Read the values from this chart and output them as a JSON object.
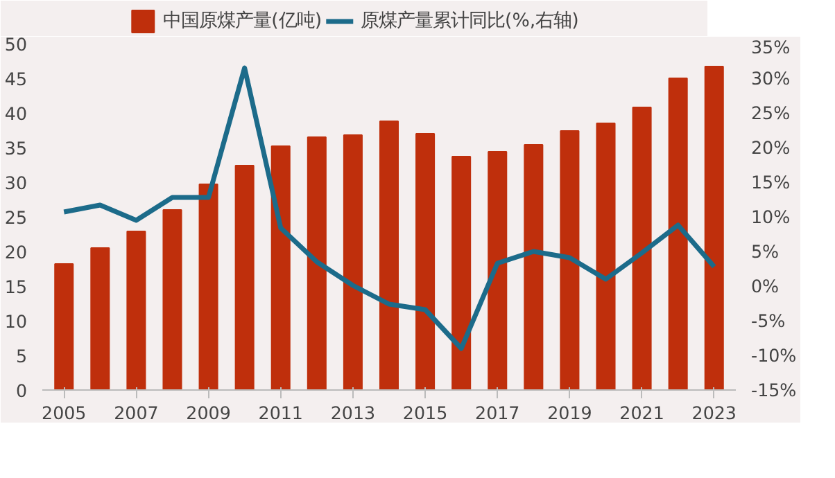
{
  "chart_data": {
    "type": "bar",
    "x": [
      2005,
      2006,
      2007,
      2008,
      2009,
      2010,
      2011,
      2012,
      2013,
      2014,
      2015,
      2016,
      2017,
      2018,
      2019,
      2020,
      2021,
      2022,
      2023
    ],
    "series": [
      {
        "name": "中国原煤产量(亿吨)",
        "color": "#bf2f0c",
        "values": [
          18.2,
          20.5,
          22.9,
          26.0,
          29.7,
          32.4,
          35.2,
          36.5,
          36.8,
          38.8,
          37.0,
          33.7,
          34.4,
          35.4,
          37.4,
          38.5,
          40.8,
          45.0,
          46.7
        ]
      },
      {
        "name": "原煤产量累计同比(%,右轴)",
        "type": "line",
        "axis": "y2",
        "color": "#1c6b8a",
        "values": [
          10.7,
          11.7,
          9.5,
          12.8,
          12.8,
          31.5,
          8.4,
          3.5,
          0.1,
          -2.6,
          -3.4,
          -9.0,
          3.3,
          5.0,
          4.1,
          1.0,
          4.8,
          8.8,
          2.8
        ]
      }
    ],
    "xlim": [
      2004.4,
      2023.6
    ],
    "xticks": [
      2005,
      2007,
      2009,
      2011,
      2013,
      2015,
      2017,
      2019,
      2021,
      2023
    ],
    "ylim": [
      0,
      50
    ],
    "yticks": [
      0,
      5,
      10,
      15,
      20,
      25,
      30,
      35,
      40,
      45,
      50
    ],
    "y2lim": [
      -15,
      35
    ],
    "y2ticks": [
      {
        "value": -15,
        "label": "-15%"
      },
      {
        "value": -10,
        "label": "-10%"
      },
      {
        "value": -5,
        "label": "-5%"
      },
      {
        "value": 0,
        "label": "0%"
      },
      {
        "value": 5,
        "label": "5%"
      },
      {
        "value": 10,
        "label": "10%"
      },
      {
        "value": 15,
        "label": "15%"
      },
      {
        "value": 20,
        "label": "20%"
      },
      {
        "value": 25,
        "label": "25%"
      },
      {
        "value": 30,
        "label": "30%"
      },
      {
        "value": 35,
        "label": "35%"
      }
    ],
    "legend": "top",
    "grid": false
  }
}
